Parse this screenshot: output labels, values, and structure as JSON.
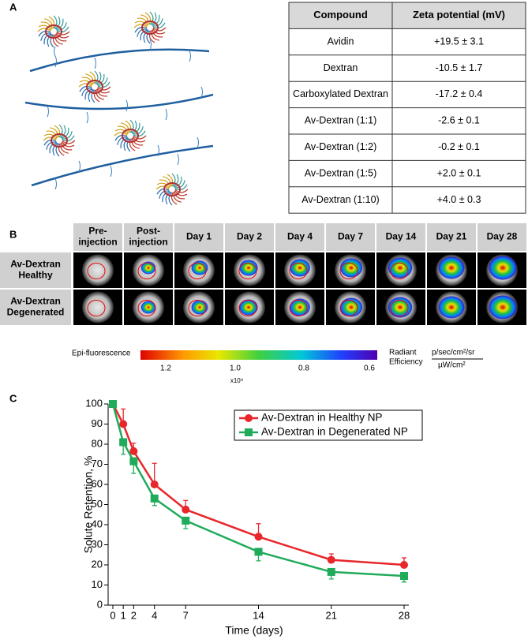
{
  "panel_labels": [
    "A",
    "B",
    "C"
  ],
  "table": {
    "header": [
      "Compound",
      "Zeta potential (mV)"
    ],
    "rows": [
      [
        "Avidin",
        "+19.5 ± 3.1"
      ],
      [
        "Dextran",
        "-10.5 ± 1.7"
      ],
      [
        "Carboxylated Dextran",
        "-17.2 ± 0.4"
      ],
      [
        "Av-Dextran (1:1)",
        "-2.6 ± 0.1"
      ],
      [
        "Av-Dextran (1:2)",
        "-0.2 ± 0.1"
      ],
      [
        "Av-Dextran (1:5)",
        "+2.0 ± 0.1"
      ],
      [
        "Av-Dextran (1:10)",
        "+4.0 ± 0.3"
      ]
    ]
  },
  "imaging": {
    "columns": [
      [
        "Pre-",
        "injection"
      ],
      [
        "Post-",
        "injection"
      ],
      [
        "Day 1"
      ],
      [
        "Day 2"
      ],
      [
        "Day 4"
      ],
      [
        "Day 7"
      ],
      [
        "Day 14"
      ],
      [
        "Day 21"
      ],
      [
        "Day 28"
      ]
    ],
    "rows": [
      [
        "Av-Dextran",
        "Healthy"
      ],
      [
        "Av-Dextran",
        "Degenerated"
      ]
    ],
    "colorbar": {
      "title": "Epi-fluorescence",
      "ticks": [
        "1.2",
        "1.0",
        "0.8",
        "0.6"
      ],
      "multiplier": "x10⁹",
      "quantity": [
        "Radiant",
        "Efficiency"
      ],
      "units": [
        "p/sec/cm²/sr",
        "µW/cm²"
      ]
    }
  },
  "chart_data": {
    "type": "line",
    "xlabel": "Time (days)",
    "ylabel": "Solute Retention, %",
    "x": [
      0,
      1,
      2,
      4,
      7,
      14,
      21,
      28
    ],
    "xlim": [
      0,
      28
    ],
    "xticks": [
      0,
      1,
      2,
      4,
      7,
      14,
      21,
      28
    ],
    "ylim": [
      0,
      100
    ],
    "yticks": [
      0,
      10,
      20,
      30,
      40,
      50,
      60,
      70,
      80,
      90,
      100
    ],
    "legend": "top-right",
    "series": [
      {
        "name": "Av-Dextran in Healthy NP",
        "color": "#e8262b",
        "marker": "circle",
        "error_direction": "up",
        "values": [
          100,
          90,
          76.5,
          60,
          47.5,
          34,
          22.5,
          20
        ],
        "errors": [
          0,
          7.5,
          4,
          10.5,
          4.5,
          6.5,
          3,
          3.5
        ]
      },
      {
        "name": "Av-Dextran in Degenerated NP",
        "color": "#1fab5a",
        "marker": "square",
        "error_direction": "down",
        "values": [
          100,
          81,
          71.5,
          53,
          42,
          26.5,
          16.5,
          14.5
        ],
        "errors": [
          0,
          6,
          6,
          3.5,
          4,
          4.5,
          3.5,
          3
        ]
      }
    ]
  }
}
